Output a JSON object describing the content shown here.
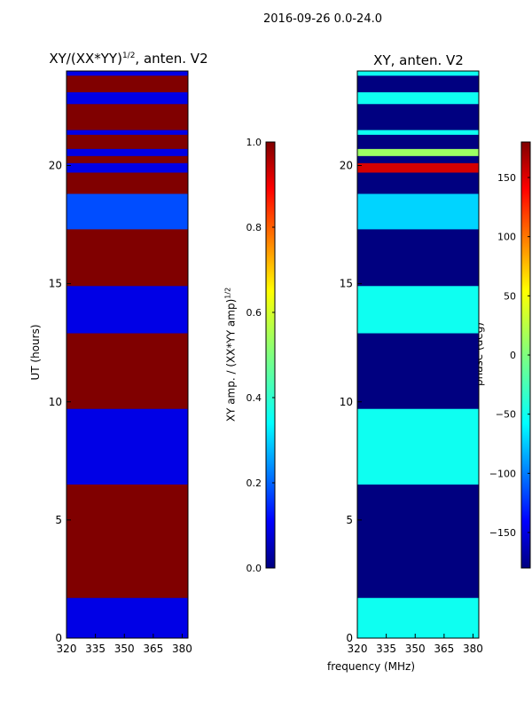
{
  "figure_title": "2016-09-26 0.0-24.0",
  "left_panel": {
    "title_main": "XY/(XX*YY)",
    "title_exp": "1/2",
    "title_tail": ", anten. V2",
    "ylabel": "UT (hours)",
    "colorbar_label_main": "XY amp. / (XX*YY amp)",
    "colorbar_label_exp": "1/2"
  },
  "right_panel": {
    "title": "XY, anten. V2",
    "colorbar_label": "phase (deg)"
  },
  "xlabel": "frequency (MHz)",
  "chart_data": [
    {
      "type": "heatmap",
      "title": "XY/(XX*YY)^1/2, anten. V2",
      "xlabel": "",
      "ylabel": "UT (hours)",
      "xlim": [
        320,
        383
      ],
      "ylim": [
        0,
        24
      ],
      "xticks": [
        320,
        335,
        350,
        365,
        380
      ],
      "yticks": [
        0,
        5,
        10,
        15,
        20
      ],
      "colorbar": {
        "label": "XY amp. / (XX*YY amp)^1/2",
        "range": [
          0.0,
          1.0
        ],
        "ticks": [
          0.0,
          0.2,
          0.4,
          0.6,
          0.8,
          1.0
        ]
      },
      "background_value": 1.0,
      "bands": [
        {
          "from": 0.0,
          "to": 1.7,
          "value": 0.1
        },
        {
          "from": 6.5,
          "to": 9.7,
          "value": 0.1
        },
        {
          "from": 12.9,
          "to": 14.9,
          "value": 0.1
        },
        {
          "from": 17.3,
          "to": 18.8,
          "value": 0.2
        },
        {
          "from": 19.7,
          "to": 20.1,
          "value": 0.1
        },
        {
          "from": 20.4,
          "to": 20.7,
          "value": 0.1
        },
        {
          "from": 21.3,
          "to": 21.5,
          "value": 0.1
        },
        {
          "from": 22.6,
          "to": 23.1,
          "value": 0.1
        },
        {
          "from": 23.8,
          "to": 24.0,
          "value": 0.1
        }
      ]
    },
    {
      "type": "heatmap",
      "title": "XY, anten. V2",
      "xlabel": "frequency (MHz)",
      "ylabel": "",
      "xlim": [
        320,
        383
      ],
      "ylim": [
        0,
        24
      ],
      "xticks": [
        320,
        335,
        350,
        365,
        380
      ],
      "yticks": [
        0,
        5,
        10,
        15,
        20
      ],
      "colorbar": {
        "label": "phase (deg)",
        "range": [
          -180,
          180
        ],
        "ticks": [
          -150,
          -100,
          -50,
          0,
          50,
          100,
          150
        ]
      },
      "background_value": -180,
      "bands": [
        {
          "from": 0.0,
          "to": 1.7,
          "value": -40
        },
        {
          "from": 6.5,
          "to": 9.7,
          "value": -40
        },
        {
          "from": 12.9,
          "to": 14.9,
          "value": -40
        },
        {
          "from": 17.3,
          "to": 18.8,
          "value": -60
        },
        {
          "from": 19.7,
          "to": 20.1,
          "value": 150
        },
        {
          "from": 20.4,
          "to": 20.7,
          "value": 10
        },
        {
          "from": 21.3,
          "to": 21.5,
          "value": -40
        },
        {
          "from": 22.6,
          "to": 23.1,
          "value": -40
        },
        {
          "from": 23.8,
          "to": 24.0,
          "value": -40
        }
      ]
    }
  ]
}
